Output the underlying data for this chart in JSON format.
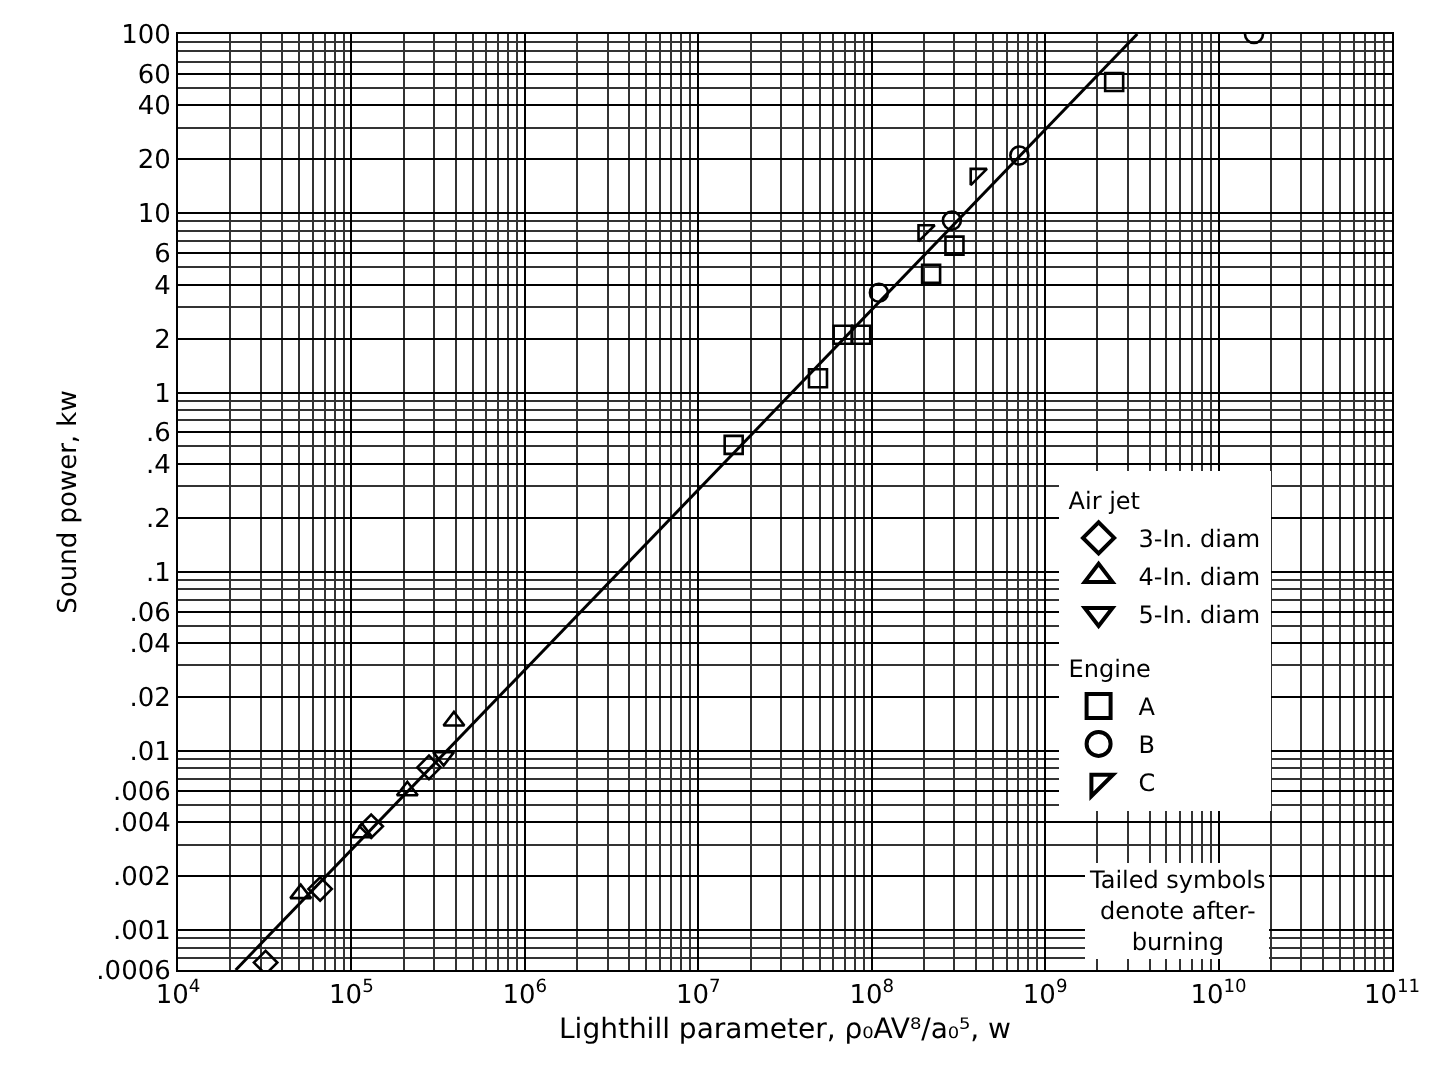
{
  "chart_data": {
    "type": "scatter",
    "xlabel": "Lighthill parameter, ρ₀AV⁸/a₀⁵, w",
    "ylabel": "Sound power, kw",
    "log": "xy",
    "grid": true,
    "legend": "bottom right",
    "xlim": [
      10000,
      100000000000
    ],
    "ylim": [
      0.0006,
      100
    ],
    "xticks": [
      {
        "value": 10000,
        "label": "10$^{4}$"
      },
      {
        "value": 100000,
        "label": "10$^{5}$"
      },
      {
        "value": 1000000,
        "label": "10$^{6}$"
      },
      {
        "value": 10000000,
        "label": "10$^{7}$"
      },
      {
        "value": 100000000,
        "label": "10$^{8}$"
      },
      {
        "value": 1000000000,
        "label": "10$^{9}$"
      },
      {
        "value": 10000000000,
        "label": "10$^{10}$"
      },
      {
        "value": 100000000000,
        "label": "10$^{11}$"
      }
    ],
    "yticks": [
      100,
      60,
      40,
      20,
      10,
      6,
      4,
      2,
      1,
      {
        "value": 0.6,
        "label": ".6"
      },
      {
        "value": 0.4,
        "label": ".4"
      },
      {
        "value": 0.2,
        "label": ".2"
      },
      {
        "value": 0.1,
        "label": ".1"
      },
      {
        "value": 0.06,
        "label": ".06"
      },
      {
        "value": 0.04,
        "label": ".04"
      },
      {
        "value": 0.02,
        "label": ".02"
      },
      {
        "value": 0.01,
        "label": ".01"
      },
      {
        "value": 0.006,
        "label": ".006"
      },
      {
        "value": 0.004,
        "label": ".004"
      },
      {
        "value": 0.002,
        "label": ".002"
      },
      {
        "value": 0.001,
        "label": ".001"
      },
      {
        "value": 0.0006,
        "label": ".0006"
      }
    ],
    "annotations": [
      "Air jet",
      "Engine",
      "Tailed symbols denote after-burning"
    ],
    "series": [
      {
        "name": "3-In. diam",
        "color": "#000000",
        "marker": "diamond",
        "x": [
          32000,
          66000,
          130000,
          280000
        ],
        "values": [
          0.00066,
          0.0017,
          0.0038,
          0.0081
        ]
      },
      {
        "name": "4-In. diam",
        "color": "#000000",
        "marker": "triangle",
        "x": [
          51000,
          115000,
          210000,
          390000
        ],
        "values": [
          0.0016,
          0.0035,
          0.006,
          0.0147
        ]
      },
      {
        "name": "5-In. diam",
        "color": "#000000",
        "marker": "triangle-down",
        "x": [
          340000
        ],
        "values": [
          0.0093
        ]
      },
      {
        "name": "A",
        "color": "#000000",
        "marker": "square",
        "x": [
          16000000,
          49000000,
          68000000,
          87000000,
          220000000,
          300000000,
          2500000000
        ],
        "values": [
          0.51,
          1.2,
          2.1,
          2.1,
          4.6,
          6.6,
          54
        ]
      },
      {
        "name": "B",
        "color": "#000000",
        "marker": "circle",
        "x": [
          110000000,
          290000000,
          710000000,
          16000000000
        ],
        "values": [
          3.6,
          9.1,
          21,
          100
        ]
      },
      {
        "name": "C",
        "color": "#000000",
        "marker": "triangle-nw",
        "x": [
          200000000,
          400000000
        ],
        "values": [
          8.0,
          16.5
        ]
      },
      {
        "type": "line",
        "color": "#000000",
        "marker": "none",
        "x": [
          21500,
          3400000000
        ],
        "values": [
          0.0006,
          100
        ]
      }
    ]
  }
}
